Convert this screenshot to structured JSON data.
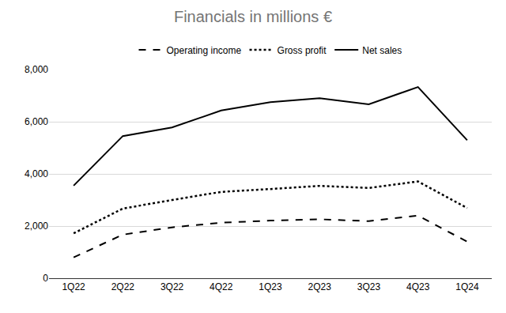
{
  "chart_data": {
    "type": "line",
    "title": "Financials in millions €",
    "categories": [
      "1Q22",
      "2Q22",
      "3Q22",
      "4Q22",
      "1Q23",
      "2Q23",
      "3Q23",
      "4Q23",
      "1Q24"
    ],
    "series": [
      {
        "name": "Operating income",
        "color": "#000000",
        "line_style": "dash",
        "values": [
          800,
          1670,
          1950,
          2130,
          2210,
          2260,
          2190,
          2400,
          1400
        ]
      },
      {
        "name": "Gross profit",
        "color": "#000000",
        "line_style": "dot",
        "values": [
          1720,
          2670,
          3000,
          3310,
          3420,
          3540,
          3460,
          3710,
          2690
        ]
      },
      {
        "name": "Net sales",
        "color": "#000000",
        "line_style": "solid",
        "values": [
          3550,
          5450,
          5780,
          6430,
          6750,
          6900,
          6670,
          7330,
          5290
        ]
      }
    ],
    "ylim": [
      0,
      8000
    ],
    "yticks": [
      0,
      {
        "value": 2000,
        "label": "2,000"
      },
      {
        "value": 4000,
        "label": "4,000"
      },
      {
        "value": 6000,
        "label": "6,000"
      },
      {
        "value": 8000,
        "label": "8,000"
      }
    ],
    "grid": true,
    "legend": "top"
  }
}
